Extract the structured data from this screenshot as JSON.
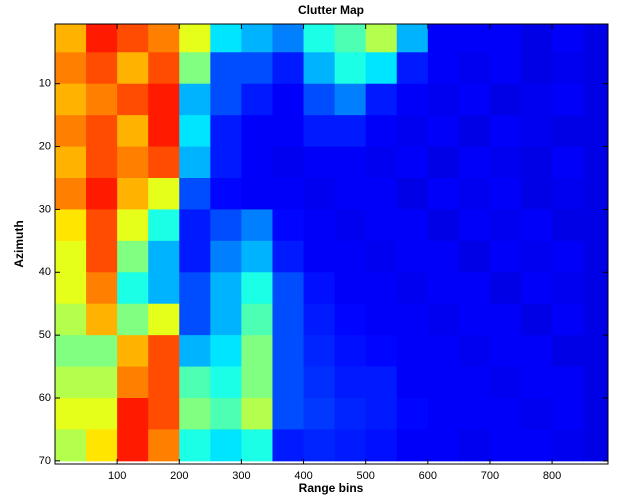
{
  "chart_data": {
    "type": "heatmap",
    "title": "Clutter Map",
    "x_label": "Range bins",
    "y_label": "Azimuth",
    "colormap": "jet",
    "x": [
      25,
      75,
      125,
      175,
      225,
      275,
      325,
      375,
      425,
      475,
      525,
      575,
      625,
      675,
      725,
      775,
      825,
      875
    ],
    "y": [
      2.5,
      7.5,
      12.5,
      17.5,
      22.5,
      27.5,
      32.5,
      37.5,
      42.5,
      47.5,
      52.5,
      57.5,
      62.5,
      67.5
    ],
    "values": [
      [
        0.7,
        0.85,
        0.8,
        0.75,
        0.6,
        0.35,
        0.3,
        0.25,
        0.4,
        0.45,
        0.55,
        0.3,
        0.12,
        0.12,
        0.12,
        0.1,
        0.12,
        0.1
      ],
      [
        0.75,
        0.8,
        0.7,
        0.8,
        0.5,
        0.2,
        0.2,
        0.15,
        0.3,
        0.4,
        0.35,
        0.15,
        0.12,
        0.11,
        0.12,
        0.1,
        0.11,
        0.1
      ],
      [
        0.7,
        0.75,
        0.8,
        0.85,
        0.3,
        0.2,
        0.15,
        0.12,
        0.2,
        0.25,
        0.15,
        0.12,
        0.11,
        0.12,
        0.1,
        0.11,
        0.12,
        0.1
      ],
      [
        0.75,
        0.8,
        0.7,
        0.85,
        0.35,
        0.15,
        0.12,
        0.12,
        0.15,
        0.15,
        0.12,
        0.11,
        0.12,
        0.1,
        0.12,
        0.11,
        0.1,
        0.1
      ],
      [
        0.7,
        0.8,
        0.75,
        0.8,
        0.3,
        0.15,
        0.12,
        0.11,
        0.12,
        0.12,
        0.11,
        0.12,
        0.1,
        0.12,
        0.11,
        0.1,
        0.12,
        0.1
      ],
      [
        0.75,
        0.85,
        0.7,
        0.6,
        0.2,
        0.13,
        0.12,
        0.12,
        0.11,
        0.12,
        0.12,
        0.1,
        0.12,
        0.11,
        0.12,
        0.1,
        0.11,
        0.1
      ],
      [
        0.65,
        0.8,
        0.6,
        0.4,
        0.15,
        0.2,
        0.25,
        0.13,
        0.12,
        0.11,
        0.12,
        0.12,
        0.1,
        0.12,
        0.11,
        0.12,
        0.1,
        0.1
      ],
      [
        0.6,
        0.8,
        0.5,
        0.3,
        0.15,
        0.25,
        0.3,
        0.15,
        0.12,
        0.12,
        0.11,
        0.12,
        0.12,
        0.1,
        0.12,
        0.11,
        0.12,
        0.1
      ],
      [
        0.6,
        0.75,
        0.4,
        0.3,
        0.2,
        0.3,
        0.4,
        0.2,
        0.14,
        0.12,
        0.12,
        0.11,
        0.12,
        0.12,
        0.1,
        0.12,
        0.11,
        0.1
      ],
      [
        0.55,
        0.7,
        0.5,
        0.6,
        0.2,
        0.3,
        0.45,
        0.2,
        0.15,
        0.13,
        0.12,
        0.12,
        0.11,
        0.12,
        0.12,
        0.1,
        0.12,
        0.1
      ],
      [
        0.5,
        0.5,
        0.7,
        0.8,
        0.3,
        0.35,
        0.5,
        0.2,
        0.16,
        0.14,
        0.13,
        0.12,
        0.12,
        0.11,
        0.12,
        0.12,
        0.1,
        0.1
      ],
      [
        0.55,
        0.55,
        0.75,
        0.8,
        0.45,
        0.4,
        0.5,
        0.2,
        0.17,
        0.15,
        0.15,
        0.12,
        0.12,
        0.12,
        0.11,
        0.12,
        0.12,
        0.1
      ],
      [
        0.6,
        0.6,
        0.85,
        0.8,
        0.5,
        0.45,
        0.55,
        0.2,
        0.18,
        0.16,
        0.15,
        0.13,
        0.12,
        0.12,
        0.12,
        0.11,
        0.12,
        0.1
      ],
      [
        0.55,
        0.65,
        0.85,
        0.75,
        0.4,
        0.35,
        0.4,
        0.15,
        0.16,
        0.15,
        0.14,
        0.12,
        0.12,
        0.11,
        0.12,
        0.12,
        0.11,
        0.1
      ]
    ],
    "xlim": [
      0,
      890
    ],
    "ylim": [
      0.5,
      70.5
    ],
    "xticks": [
      100,
      200,
      300,
      400,
      500,
      600,
      700,
      800
    ],
    "yticks": [
      10,
      20,
      30,
      40,
      50,
      60,
      70
    ]
  }
}
